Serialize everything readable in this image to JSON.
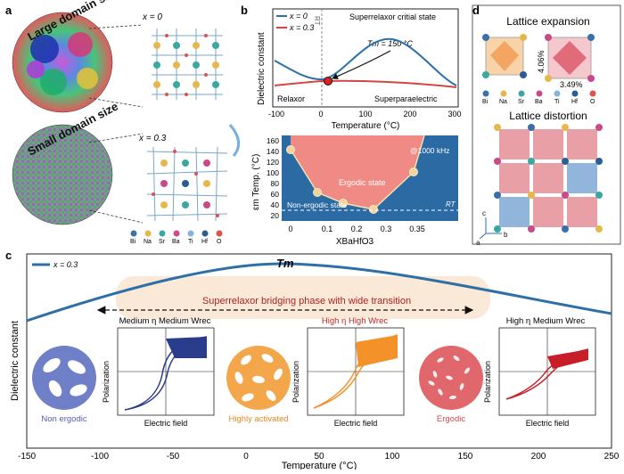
{
  "panel_a": {
    "letter": "a",
    "top_label": "Large domain size",
    "top_x_label": "x = 0",
    "bottom_label": "Small domain size",
    "bottom_x_label": "x = 0.3",
    "legend": [
      "Bi",
      "Na",
      "Sr",
      "Ba",
      "Ti",
      "Hf",
      "O"
    ]
  },
  "panel_b": {
    "letter": "b",
    "legend": [
      "x = 0",
      "x = 0.3"
    ],
    "rt_label": "RT",
    "state_label": "Superrelaxor critial state",
    "tm_annotation": "Tm = 150 °C",
    "relaxor_label": "Relaxor",
    "superpara_label": "Superparaelectric",
    "ylabel_top": "Dielectric constant",
    "xlabel_top": "Temperature (°C)",
    "xticks_top": [
      "-100",
      "0",
      "100",
      "200",
      "300"
    ],
    "ylabel_bottom": "εm Temp. (°C)",
    "yticks_bottom": [
      "160",
      "140",
      "120",
      "100",
      "80",
      "60",
      "40",
      "20"
    ],
    "xticks_bottom": [
      "0",
      "0.1",
      "0.2",
      "0.3",
      "0.35"
    ],
    "xlabel_bottom": "XBaHfO3",
    "freq_label": "@1000 kHz",
    "ergodic_label": "Ergodic state",
    "nonergodic_label": "Non-ergodic state",
    "rt_label_bottom": "RT"
  },
  "panel_c": {
    "letter": "c",
    "legend": "x = 0.3",
    "tm_label": "Tm",
    "bridging_label": "Superrelaxor bridging phase with wide transition",
    "ylabel": "Dielectric constant",
    "xlabel": "Temperature (°C)",
    "xticks": [
      "-150",
      "-100",
      "-50",
      "0",
      "50",
      "100",
      "150",
      "200",
      "250"
    ],
    "inset1_title": "Medium η Medium Wrec",
    "inset2_title": "High η High Wrec",
    "inset3_title": "High η Medium Wrec",
    "inset_ylabel": "Polarization",
    "inset_xlabel": "Electric field",
    "circle1_label": "Non ergodic",
    "circle2_label": "Highly activated",
    "circle3_label": "Ergodic"
  },
  "panel_d": {
    "letter": "d",
    "title_expansion": "Lattice expansion",
    "pct_vertical": "4.06%",
    "pct_horizontal": "3.49%",
    "legend": [
      "Bi",
      "Na",
      "Sr",
      "Ba",
      "Ti",
      "Hf",
      "O"
    ],
    "title_distortion": "Lattice distortion",
    "axis_c": "c",
    "axis_a": "a",
    "axis_b": "b"
  },
  "colors": {
    "blue": "#2e6fa8",
    "red": "#d64545",
    "pink_region": "#ef8b84",
    "dark_blue_region": "#2b6aa2",
    "orange": "#f4a64a",
    "purple": "#6a76c4",
    "coral": "#e0676c"
  }
}
